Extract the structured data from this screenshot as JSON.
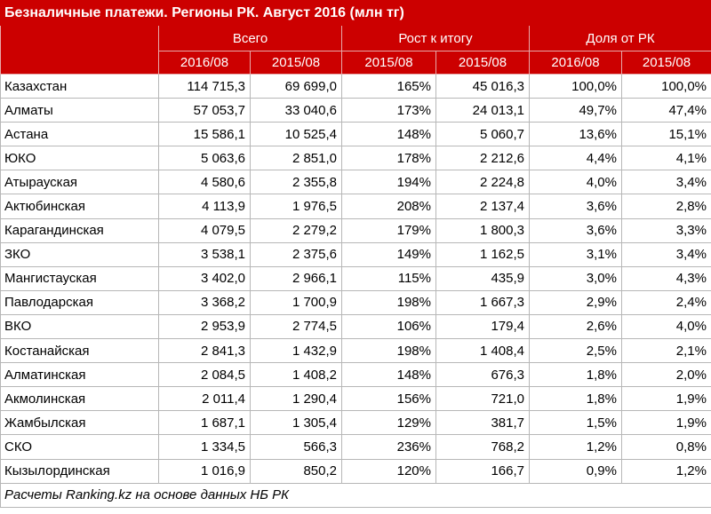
{
  "title": "Безналичные платежи. Регионы РК. Август 2016 (млн тг)",
  "groups": [
    "Всего",
    "Рост к итогу",
    "Доля от РК"
  ],
  "subheaders": [
    "2016/08",
    "2015/08",
    "2015/08",
    "2015/08",
    "2016/08",
    "2015/08"
  ],
  "rows": [
    {
      "name": "Казахстан",
      "v": [
        "114 715,3",
        "69 699,0",
        "165%",
        "45 016,3",
        "100,0%",
        "100,0%"
      ]
    },
    {
      "name": "Алматы",
      "v": [
        "57 053,7",
        "33 040,6",
        "173%",
        "24 013,1",
        "49,7%",
        "47,4%"
      ]
    },
    {
      "name": "Астана",
      "v": [
        "15 586,1",
        "10 525,4",
        "148%",
        "5 060,7",
        "13,6%",
        "15,1%"
      ]
    },
    {
      "name": "ЮКО",
      "v": [
        "5 063,6",
        "2 851,0",
        "178%",
        "2 212,6",
        "4,4%",
        "4,1%"
      ]
    },
    {
      "name": "Атырауская",
      "v": [
        "4 580,6",
        "2 355,8",
        "194%",
        "2 224,8",
        "4,0%",
        "3,4%"
      ]
    },
    {
      "name": "Актюбинская",
      "v": [
        "4 113,9",
        "1 976,5",
        "208%",
        "2 137,4",
        "3,6%",
        "2,8%"
      ]
    },
    {
      "name": "Карагандинская",
      "v": [
        "4 079,5",
        "2 279,2",
        "179%",
        "1 800,3",
        "3,6%",
        "3,3%"
      ]
    },
    {
      "name": "ЗКО",
      "v": [
        "3 538,1",
        "2 375,6",
        "149%",
        "1 162,5",
        "3,1%",
        "3,4%"
      ]
    },
    {
      "name": "Мангистауская",
      "v": [
        "3 402,0",
        "2 966,1",
        "115%",
        "435,9",
        "3,0%",
        "4,3%"
      ]
    },
    {
      "name": "Павлодарская",
      "v": [
        "3 368,2",
        "1 700,9",
        "198%",
        "1 667,3",
        "2,9%",
        "2,4%"
      ]
    },
    {
      "name": "ВКО",
      "v": [
        "2 953,9",
        "2 774,5",
        "106%",
        "179,4",
        "2,6%",
        "4,0%"
      ]
    },
    {
      "name": "Костанайская",
      "v": [
        "2 841,3",
        "1 432,9",
        "198%",
        "1 408,4",
        "2,5%",
        "2,1%"
      ]
    },
    {
      "name": "Алматинская",
      "v": [
        "2 084,5",
        "1 408,2",
        "148%",
        "676,3",
        "1,8%",
        "2,0%"
      ]
    },
    {
      "name": "Акмолинская",
      "v": [
        "2 011,4",
        "1 290,4",
        "156%",
        "721,0",
        "1,8%",
        "1,9%"
      ]
    },
    {
      "name": "Жамбылская",
      "v": [
        "1 687,1",
        "1 305,4",
        "129%",
        "381,7",
        "1,5%",
        "1,9%"
      ]
    },
    {
      "name": "СКО",
      "v": [
        "1 334,5",
        "566,3",
        "236%",
        "768,2",
        "1,2%",
        "0,8%"
      ]
    },
    {
      "name": "Кызылординская",
      "v": [
        "1 016,9",
        "850,2",
        "120%",
        "166,7",
        "0,9%",
        "1,2%"
      ]
    }
  ],
  "footnote": "Расчеты Ranking.kz на основе данных НБ РК",
  "colors": {
    "header_bg": "#cc0000",
    "header_text": "#ffffff",
    "grid": "#b7b7b7"
  }
}
